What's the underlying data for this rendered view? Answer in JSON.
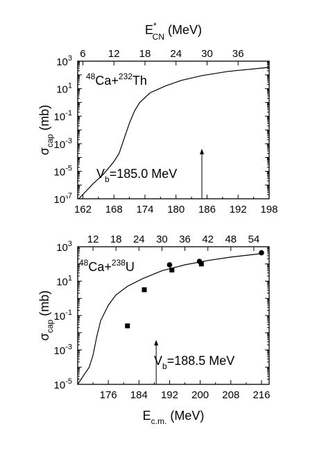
{
  "colors": {
    "ink": "#000000",
    "background": "#ffffff"
  },
  "chart_data": [
    {
      "type": "line",
      "annotation": {
        "mass_a": "48",
        "proj": "Ca+",
        "mass_b": "232",
        "targ": "Th",
        "vb_main": "V",
        "vb_sub": "b",
        "vb_value": "=185.0 MeV",
        "vb_x": 185.0
      },
      "top_axis": {
        "label_main": "E",
        "label_sup": "*",
        "label_sub": "CN",
        "label_unit": " (MeV)",
        "ticks": [
          "6",
          "12",
          "18",
          "24",
          "30",
          "36"
        ],
        "tick_values": [
          6,
          12,
          18,
          24,
          30,
          36
        ],
        "offset": 156
      },
      "xlim": [
        161,
        198
      ],
      "x_ticks": [
        "162",
        "168",
        "174",
        "180",
        "186",
        "192",
        "198"
      ],
      "x_tick_values": [
        162,
        168,
        174,
        180,
        186,
        192,
        198
      ],
      "y_scale": "log",
      "ylim_exp": [
        -7,
        3
      ],
      "y_label": {
        "main": "σ",
        "sub": "cap",
        "unit": " (mb)"
      },
      "y_ticks": [
        {
          "base": "10",
          "exp": "3"
        },
        {
          "base": "10",
          "exp": "1"
        },
        {
          "base": "10",
          "exp": "-1"
        },
        {
          "base": "10",
          "exp": "-3"
        },
        {
          "base": "10",
          "exp": "-5"
        },
        {
          "base": "10",
          "exp": "-7"
        }
      ],
      "y_tick_exps": [
        3,
        1,
        -1,
        -3,
        -5,
        -7
      ],
      "series": [
        {
          "style": "line",
          "x": [
            161.2,
            164,
            166,
            168,
            169,
            170,
            171,
            172,
            173,
            175,
            178,
            181,
            185,
            190,
            198
          ],
          "log_y": [
            -7,
            -5.9,
            -5.2,
            -4.3,
            -3.7,
            -2.6,
            -1.5,
            -0.6,
            0.0,
            0.7,
            1.2,
            1.6,
            1.95,
            2.25,
            2.55
          ]
        }
      ]
    },
    {
      "type": "line",
      "annotation": {
        "mass_a": "48",
        "proj": "Ca+",
        "mass_b": "238",
        "targ": "U",
        "vb_main": "V",
        "vb_sub": "b",
        "vb_value": "=188.5 MeV",
        "vb_x": 188.5
      },
      "top_axis": {
        "ticks": [
          "12",
          "18",
          "24",
          "30",
          "36",
          "42",
          "48",
          "54"
        ],
        "tick_values": [
          12,
          18,
          24,
          30,
          36,
          42,
          48,
          54
        ],
        "offset": 160
      },
      "xlim": [
        168,
        218
      ],
      "x_ticks": [
        "176",
        "184",
        "192",
        "200",
        "208",
        "216"
      ],
      "x_tick_values": [
        176,
        184,
        192,
        200,
        208,
        216
      ],
      "x_label": {
        "main": "E",
        "sub": "c.m.",
        "unit": " (MeV)"
      },
      "y_scale": "log",
      "ylim_exp": [
        -5,
        3
      ],
      "y_label": {
        "main": "σ",
        "sub": "cap",
        "unit": " (mb)"
      },
      "y_ticks": [
        {
          "base": "10",
          "exp": "3"
        },
        {
          "base": "10",
          "exp": "1"
        },
        {
          "base": "10",
          "exp": "-1"
        },
        {
          "base": "10",
          "exp": "-3"
        },
        {
          "base": "10",
          "exp": "-5"
        }
      ],
      "y_tick_exps": [
        3,
        1,
        -1,
        -3,
        -5
      ],
      "series": [
        {
          "style": "line",
          "x": [
            168,
            169.5,
            171,
            172,
            173,
            174,
            176,
            178,
            181,
            185,
            190,
            196,
            202,
            208,
            216
          ],
          "log_y": [
            -5,
            -4.5,
            -4.0,
            -3.3,
            -2.2,
            -1.3,
            -0.4,
            0.2,
            0.7,
            1.15,
            1.6,
            1.95,
            2.2,
            2.4,
            2.6
          ]
        },
        {
          "style": "square",
          "x": [
            181.0,
            185.4,
            192.6,
            200.3
          ],
          "log_y": [
            -1.6,
            0.5,
            1.65,
            2.0
          ]
        },
        {
          "style": "circle",
          "x": [
            192.0,
            199.8,
            216.0
          ],
          "log_y": [
            1.95,
            2.15,
            2.65
          ]
        }
      ]
    }
  ]
}
